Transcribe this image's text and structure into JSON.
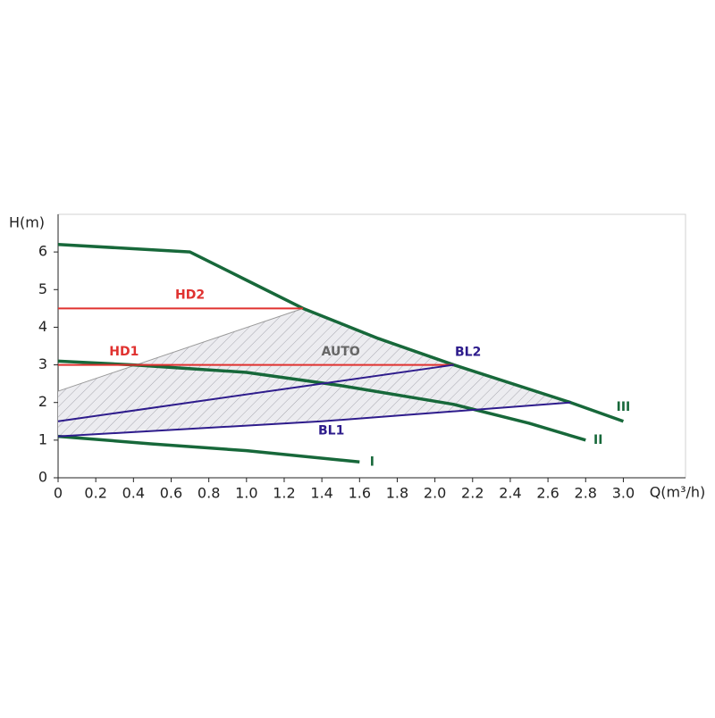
{
  "chart_data": {
    "type": "line",
    "x_label": "Q(m³/h)",
    "y_label": "H(m)",
    "xlim": [
      0,
      3.33
    ],
    "ylim": [
      0,
      7
    ],
    "xticks": [
      0,
      0.2,
      0.4,
      0.6,
      0.8,
      {
        "value": 1,
        "label": "1.0"
      },
      1.2,
      1.4,
      1.6,
      1.8,
      {
        "value": 2,
        "label": "2.0"
      },
      2.2,
      2.4,
      2.6,
      2.8,
      {
        "value": 3,
        "label": "3.0"
      }
    ],
    "yticks": [
      0,
      1,
      2,
      3,
      4,
      5,
      6
    ],
    "series": [
      {
        "name": "AUTO",
        "color": "#9a9a9a",
        "fill": true,
        "x": [
          0,
          1.3,
          2.1,
          2.72,
          1.4,
          0
        ],
        "values": [
          2.3,
          4.5,
          3.0,
          2.0,
          1.5,
          1.1
        ]
      },
      {
        "name": "III",
        "color": "#17683a",
        "x": [
          0,
          0.7,
          1.0,
          1.3,
          1.7,
          2.1,
          2.72,
          3.0
        ],
        "values": [
          6.2,
          6.0,
          5.25,
          4.5,
          3.7,
          3.0,
          2.0,
          1.5
        ]
      },
      {
        "name": "II",
        "color": "#17683a",
        "x": [
          0,
          0.4,
          1.0,
          1.5,
          2.1,
          2.5,
          2.8
        ],
        "values": [
          3.1,
          3.0,
          2.8,
          2.45,
          1.95,
          1.45,
          1.0
        ]
      },
      {
        "name": "I",
        "color": "#17683a",
        "x": [
          0,
          0.5,
          1.0,
          1.6
        ],
        "values": [
          1.1,
          0.9,
          0.72,
          0.42
        ]
      },
      {
        "name": "HD2",
        "color": "#e0312f",
        "x": [
          0,
          1.3
        ],
        "values": [
          4.5,
          4.5
        ]
      },
      {
        "name": "HD1",
        "color": "#e0312f",
        "x": [
          0,
          2.1
        ],
        "values": [
          3.0,
          3.0
        ]
      },
      {
        "name": "BL2",
        "color": "#2e1c8c",
        "x": [
          0,
          2.1
        ],
        "values": [
          1.5,
          3.0
        ]
      },
      {
        "name": "BL1",
        "color": "#2e1c8c",
        "x": [
          0,
          1.4,
          2.72
        ],
        "values": [
          1.1,
          1.5,
          2.0
        ]
      }
    ]
  }
}
